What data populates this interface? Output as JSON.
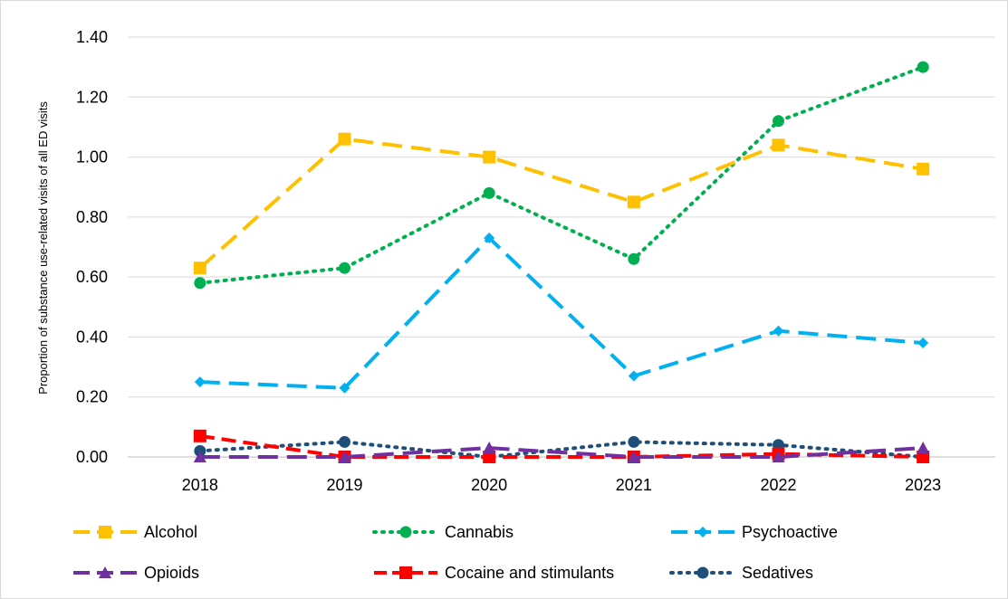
{
  "chart_data": {
    "type": "line",
    "title": "",
    "xlabel": "",
    "ylabel": "Proportion of substance use-related visits of all ED visits",
    "categories": [
      "2018",
      "2019",
      "2020",
      "2021",
      "2022",
      "2023"
    ],
    "ylim": [
      0,
      1.4
    ],
    "yticks": [
      "0.00",
      "0.20",
      "0.40",
      "0.60",
      "0.80",
      "1.00",
      "1.20",
      "1.40"
    ],
    "grid": "horizontal",
    "legend_position": "bottom",
    "series": [
      {
        "name": "Alcohol",
        "values": [
          0.63,
          1.06,
          1.0,
          0.85,
          1.04,
          0.96
        ],
        "color": "#FFC000",
        "dash": "long-dash",
        "marker": "square"
      },
      {
        "name": "Cannabis",
        "values": [
          0.58,
          0.63,
          0.88,
          0.66,
          1.12,
          1.3
        ],
        "color": "#00B050",
        "dash": "dotted",
        "marker": "circle"
      },
      {
        "name": "Psychoactive",
        "values": [
          0.25,
          0.23,
          0.73,
          0.27,
          0.42,
          0.38
        ],
        "color": "#00B0F0",
        "dash": "long-dash",
        "marker": "diamond"
      },
      {
        "name": "Opioids",
        "values": [
          0.0,
          0.0,
          0.03,
          0.0,
          0.0,
          0.03
        ],
        "color": "#7030A0",
        "dash": "long-dash",
        "marker": "triangle"
      },
      {
        "name": "Cocaine and stimulants",
        "values": [
          0.07,
          0.0,
          0.0,
          0.0,
          0.01,
          0.0
        ],
        "color": "#FF0000",
        "dash": "dash",
        "marker": "square"
      },
      {
        "name": "Sedatives",
        "values": [
          0.02,
          0.05,
          0.0,
          0.05,
          0.04,
          0.0
        ],
        "color": "#1F4E79",
        "dash": "dotted",
        "marker": "circle"
      }
    ]
  }
}
